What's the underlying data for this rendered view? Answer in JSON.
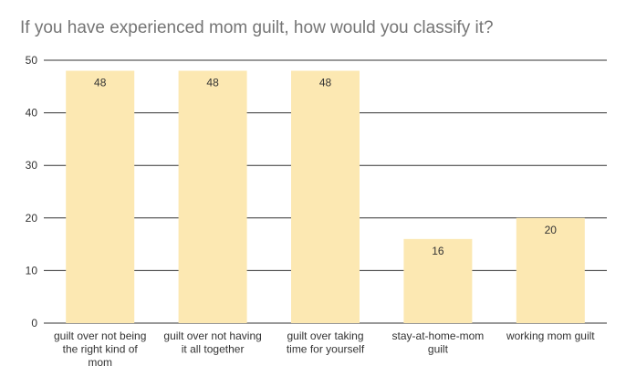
{
  "chart_data": {
    "type": "bar",
    "title": "If you have experienced mom guilt, how would you classify it?",
    "xlabel": "",
    "ylabel": "",
    "categories": [
      [
        "guilt over not being",
        "the right kind of",
        "mom"
      ],
      [
        "guilt over not having",
        "it all together"
      ],
      [
        "guilt over taking",
        "time for yourself"
      ],
      [
        "stay-at-home-mom",
        "guilt"
      ],
      [
        "working mom guilt"
      ]
    ],
    "values": [
      48,
      48,
      48,
      16,
      20
    ],
    "data_labels": [
      "48",
      "48",
      "48",
      "16",
      "20"
    ],
    "ylim": [
      0,
      50
    ],
    "yticks": [
      0,
      10,
      20,
      30,
      40,
      50
    ],
    "grid": true,
    "legend": "none",
    "colors": {
      "bar": "#fce8b2",
      "grid": "#333333",
      "text": "#333333",
      "title": "#757575"
    }
  }
}
